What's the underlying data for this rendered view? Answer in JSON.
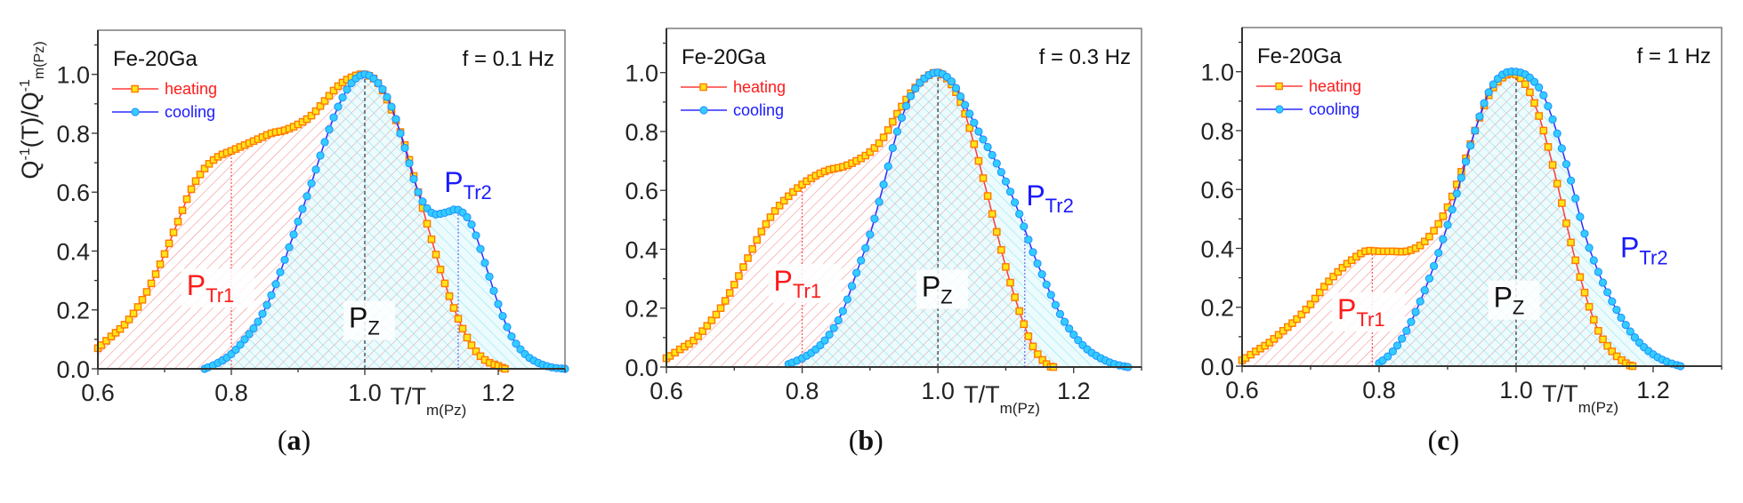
{
  "chart_data": [
    {
      "type": "line",
      "panel_label_open": "(",
      "panel_label": "a",
      "panel_label_close": ")",
      "title": "Fe-20Ga",
      "frequency": "f = 0.1 Hz",
      "ylabel": "Q-1(T)/Q-1m(Pz)",
      "ylabel_parts": {
        "q1": "Q",
        "sup1": "-1",
        "mid": "(T)/Q",
        "sup2": "-1",
        "sub": "m(Pz)"
      },
      "xlabel": "T/T",
      "xlabel_sub": "m(Pz)",
      "xlim": [
        0.6,
        1.3
      ],
      "ylim": [
        0,
        1.15
      ],
      "xticks": [
        "0.6",
        "0.8",
        "1.0",
        "1.2"
      ],
      "yticks": [
        "0.0",
        "0.2",
        "0.4",
        "0.6",
        "0.8",
        "1.0"
      ],
      "legend": [
        "heating",
        "cooling"
      ],
      "annotations": [
        {
          "main": "P",
          "sub": "Tr1",
          "color": "#ff1a1a"
        },
        {
          "main": "P",
          "sub": "Z",
          "color": "#111111"
        },
        {
          "main": "P",
          "sub": "Tr2",
          "color": "#1a1aff"
        }
      ],
      "series": [
        {
          "name": "heating",
          "x": [
            0.6,
            0.62,
            0.64,
            0.66,
            0.68,
            0.7,
            0.72,
            0.74,
            0.76,
            0.78,
            0.8,
            0.82,
            0.84,
            0.86,
            0.88,
            0.9,
            0.92,
            0.94,
            0.96,
            0.98,
            1.0,
            1.02,
            1.04,
            1.06,
            1.08,
            1.1,
            1.12,
            1.14,
            1.16,
            1.18,
            1.2,
            1.21
          ],
          "y": [
            0.07,
            0.11,
            0.15,
            0.21,
            0.29,
            0.39,
            0.5,
            0.61,
            0.68,
            0.72,
            0.74,
            0.76,
            0.78,
            0.8,
            0.81,
            0.83,
            0.86,
            0.91,
            0.96,
            0.99,
            1.0,
            0.97,
            0.88,
            0.76,
            0.6,
            0.44,
            0.29,
            0.17,
            0.08,
            0.03,
            0.01,
            0.0
          ]
        },
        {
          "name": "cooling",
          "x": [
            0.76,
            0.78,
            0.8,
            0.82,
            0.84,
            0.86,
            0.88,
            0.9,
            0.92,
            0.94,
            0.96,
            0.98,
            1.0,
            1.02,
            1.04,
            1.06,
            1.08,
            1.1,
            1.12,
            1.14,
            1.16,
            1.18,
            1.2,
            1.22,
            1.24,
            1.26,
            1.28,
            1.3
          ],
          "y": [
            0.0,
            0.02,
            0.05,
            0.1,
            0.16,
            0.25,
            0.37,
            0.5,
            0.63,
            0.77,
            0.89,
            0.97,
            1.0,
            0.97,
            0.89,
            0.75,
            0.6,
            0.53,
            0.53,
            0.54,
            0.49,
            0.36,
            0.22,
            0.11,
            0.05,
            0.02,
            0.005,
            0.0
          ]
        }
      ]
    },
    {
      "type": "line",
      "panel_label_open": "(",
      "panel_label": "b",
      "panel_label_close": ")",
      "title": "Fe-20Ga",
      "frequency": "f = 0.3 Hz",
      "xlabel": "T/T",
      "xlabel_sub": "m(Pz)",
      "xlim": [
        0.6,
        1.3
      ],
      "ylim": [
        0,
        1.15
      ],
      "xticks": [
        "0.6",
        "0.8",
        "1.0",
        "1.2"
      ],
      "yticks": [
        "0.0",
        "0.2",
        "0.4",
        "0.6",
        "0.8",
        "1.0"
      ],
      "legend": [
        "heating",
        "cooling"
      ],
      "annotations": [
        {
          "main": "P",
          "sub": "Tr1",
          "color": "#ff1a1a"
        },
        {
          "main": "P",
          "sub": "Z",
          "color": "#111111"
        },
        {
          "main": "P",
          "sub": "Tr2",
          "color": "#1a1aff"
        }
      ],
      "series": [
        {
          "name": "heating",
          "x": [
            0.6,
            0.62,
            0.64,
            0.66,
            0.68,
            0.7,
            0.72,
            0.74,
            0.76,
            0.78,
            0.8,
            0.82,
            0.84,
            0.86,
            0.88,
            0.9,
            0.92,
            0.94,
            0.96,
            0.98,
            1.0,
            1.02,
            1.04,
            1.06,
            1.08,
            1.1,
            1.12,
            1.14,
            1.16,
            1.17
          ],
          "y": [
            0.03,
            0.06,
            0.09,
            0.14,
            0.2,
            0.28,
            0.37,
            0.46,
            0.53,
            0.58,
            0.62,
            0.65,
            0.67,
            0.68,
            0.7,
            0.73,
            0.78,
            0.86,
            0.93,
            0.98,
            1.0,
            0.96,
            0.86,
            0.7,
            0.52,
            0.34,
            0.19,
            0.07,
            0.01,
            0.0
          ]
        },
        {
          "name": "cooling",
          "x": [
            0.78,
            0.8,
            0.82,
            0.84,
            0.86,
            0.88,
            0.9,
            0.92,
            0.94,
            0.96,
            0.98,
            1.0,
            1.02,
            1.04,
            1.06,
            1.08,
            1.1,
            1.12,
            1.14,
            1.16,
            1.18,
            1.2,
            1.22,
            1.24,
            1.26,
            1.28
          ],
          "y": [
            0.01,
            0.03,
            0.06,
            0.11,
            0.19,
            0.32,
            0.45,
            0.62,
            0.8,
            0.92,
            0.98,
            1.0,
            0.97,
            0.89,
            0.8,
            0.72,
            0.63,
            0.52,
            0.39,
            0.28,
            0.18,
            0.11,
            0.06,
            0.03,
            0.01,
            0.0
          ]
        }
      ]
    },
    {
      "type": "line",
      "panel_label_open": "(",
      "panel_label": "c",
      "panel_label_close": ")",
      "title": "Fe-20Ga",
      "frequency": "f = 1 Hz",
      "xlabel": "T/T",
      "xlabel_sub": "m(Pz)",
      "xlim": [
        0.6,
        1.3
      ],
      "ylim": [
        0,
        1.15
      ],
      "xticks": [
        "0.6",
        "0.8",
        "1.0",
        "1.2"
      ],
      "yticks": [
        "0.0",
        "0.2",
        "0.4",
        "0.6",
        "0.8",
        "1.0"
      ],
      "legend": [
        "heating",
        "cooling"
      ],
      "annotations": [
        {
          "main": "P",
          "sub": "Tr1",
          "color": "#ff1a1a"
        },
        {
          "main": "P",
          "sub": "Z",
          "color": "#111111"
        },
        {
          "main": "P",
          "sub": "Tr2",
          "color": "#1a1aff"
        }
      ],
      "series": [
        {
          "name": "heating",
          "x": [
            0.6,
            0.62,
            0.64,
            0.66,
            0.68,
            0.7,
            0.72,
            0.74,
            0.76,
            0.78,
            0.8,
            0.82,
            0.84,
            0.86,
            0.88,
            0.9,
            0.92,
            0.94,
            0.96,
            0.98,
            1.0,
            1.02,
            1.04,
            1.06,
            1.08,
            1.1,
            1.12,
            1.14,
            1.16,
            1.17
          ],
          "y": [
            0.02,
            0.05,
            0.08,
            0.12,
            0.16,
            0.21,
            0.27,
            0.32,
            0.36,
            0.39,
            0.39,
            0.39,
            0.39,
            0.41,
            0.46,
            0.54,
            0.66,
            0.8,
            0.92,
            0.98,
            0.99,
            0.93,
            0.8,
            0.62,
            0.42,
            0.25,
            0.12,
            0.05,
            0.01,
            0.0
          ]
        },
        {
          "name": "cooling",
          "x": [
            0.8,
            0.82,
            0.84,
            0.86,
            0.88,
            0.9,
            0.92,
            0.94,
            0.96,
            0.98,
            1.0,
            1.02,
            1.04,
            1.06,
            1.08,
            1.1,
            1.12,
            1.14,
            1.16,
            1.18,
            1.2,
            1.22,
            1.24
          ],
          "y": [
            0.01,
            0.05,
            0.12,
            0.22,
            0.34,
            0.48,
            0.64,
            0.8,
            0.93,
            0.99,
            1.0,
            0.98,
            0.92,
            0.79,
            0.63,
            0.45,
            0.32,
            0.22,
            0.14,
            0.08,
            0.04,
            0.015,
            0.0
          ]
        }
      ]
    }
  ],
  "colors": {
    "heating_line": "#ff3b3b",
    "heating_marker": "#ffe41a",
    "heating_marker_edge": "#ff7a00",
    "cooling_line": "#2b2bff",
    "cooling_marker": "#33ccff",
    "cooling_marker_edge": "#1e90ff",
    "heating_text": "#ff1a1a",
    "cooling_text": "#1a1aff"
  }
}
